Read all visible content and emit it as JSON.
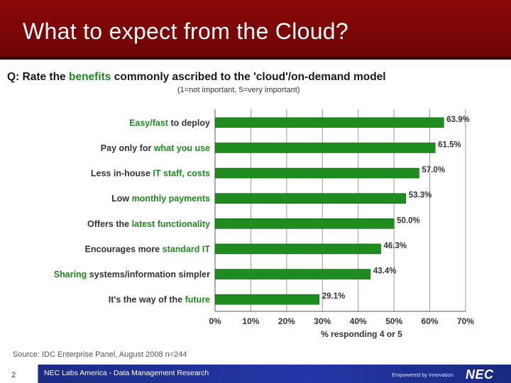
{
  "slide": {
    "title": "What to expect from the Cloud?",
    "page_number": "2",
    "footer_text": "NEC Labs America - Data Management Research",
    "tagline": "Empowered by Innovation",
    "logo": "NEC"
  },
  "chart_data": {
    "type": "bar",
    "orientation": "horizontal",
    "question_prefix": "Q: Rate the ",
    "question_highlight": "benefits",
    "question_suffix": " commonly ascribed to the 'cloud'/on-demand model",
    "subtitle": "(1=not important, 5=very important)",
    "categories": [
      {
        "plain_before": "",
        "highlight": "Easy/fast",
        "plain_after": " to deploy"
      },
      {
        "plain_before": "Pay only for ",
        "highlight": "what you use",
        "plain_after": ""
      },
      {
        "plain_before": "Less in-house ",
        "highlight": "IT staff, costs",
        "plain_after": ""
      },
      {
        "plain_before": "Low ",
        "highlight": "monthly payments",
        "plain_after": ""
      },
      {
        "plain_before": "Offers the ",
        "highlight": "latest functionality",
        "plain_after": ""
      },
      {
        "plain_before": "Encourages more ",
        "highlight": "standard IT",
        "plain_after": ""
      },
      {
        "plain_before": "",
        "highlight": "Sharing",
        "plain_after": " systems/information simpler"
      },
      {
        "plain_before": "It's the way of the ",
        "highlight": "future",
        "plain_after": ""
      }
    ],
    "values": [
      63.9,
      61.5,
      57.0,
      53.3,
      50.0,
      46.3,
      43.4,
      29.1
    ],
    "value_labels": [
      "63.9%",
      "61.5%",
      "57.0%",
      "53.3%",
      "50.0%",
      "46.3%",
      "43.4%",
      "29.1%"
    ],
    "xlim": [
      0,
      70
    ],
    "ticks": [
      0,
      10,
      20,
      30,
      40,
      50,
      60,
      70
    ],
    "tick_labels": [
      "0%",
      "10%",
      "20%",
      "30%",
      "40%",
      "50%",
      "60%",
      "70%"
    ],
    "xlabel": "% responding 4 or 5",
    "grid": true,
    "bar_color": "#1e8c1e",
    "highlight_color": "#1f8a1f",
    "source": "Source: IDC Enterprise Panel, August 2008 n=244"
  }
}
